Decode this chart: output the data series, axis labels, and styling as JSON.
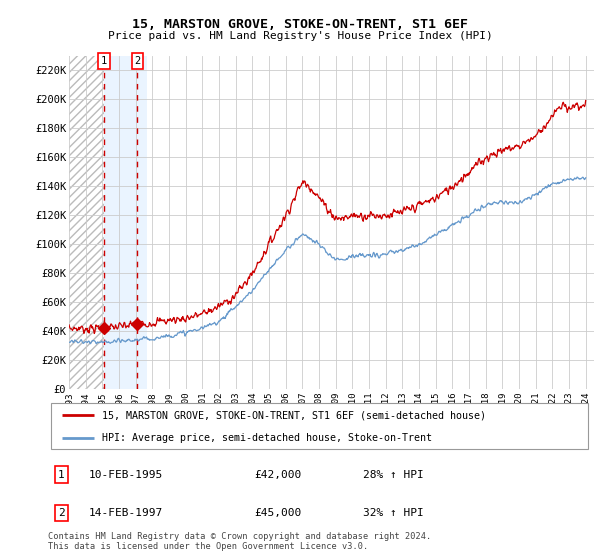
{
  "title": "15, MARSTON GROVE, STOKE-ON-TRENT, ST1 6EF",
  "subtitle": "Price paid vs. HM Land Registry's House Price Index (HPI)",
  "legend_line1": "15, MARSTON GROVE, STOKE-ON-TRENT, ST1 6EF (semi-detached house)",
  "legend_line2": "HPI: Average price, semi-detached house, Stoke-on-Trent",
  "annotation1_label": "1",
  "annotation1_date": "10-FEB-1995",
  "annotation1_price": "£42,000",
  "annotation1_hpi": "28% ↑ HPI",
  "annotation2_label": "2",
  "annotation2_date": "14-FEB-1997",
  "annotation2_price": "£45,000",
  "annotation2_hpi": "32% ↑ HPI",
  "footer": "Contains HM Land Registry data © Crown copyright and database right 2024.\nThis data is licensed under the Open Government Licence v3.0.",
  "sale1_x": 1995.1,
  "sale1_y": 42000,
  "sale2_x": 1997.1,
  "sale2_y": 45000,
  "ylim": [
    0,
    230000
  ],
  "xlim_start": 1993.0,
  "xlim_end": 2024.5,
  "yticks": [
    0,
    20000,
    40000,
    60000,
    80000,
    100000,
    120000,
    140000,
    160000,
    180000,
    200000,
    220000
  ],
  "ytick_labels": [
    "£0",
    "£20K",
    "£40K",
    "£60K",
    "£80K",
    "£100K",
    "£120K",
    "£140K",
    "£160K",
    "£180K",
    "£200K",
    "£220K"
  ],
  "xticks": [
    1993,
    1994,
    1995,
    1996,
    1997,
    1998,
    1999,
    2000,
    2001,
    2002,
    2003,
    2004,
    2005,
    2006,
    2007,
    2008,
    2009,
    2010,
    2011,
    2012,
    2013,
    2014,
    2015,
    2016,
    2017,
    2018,
    2019,
    2020,
    2021,
    2022,
    2023,
    2024
  ],
  "line_color": "#cc0000",
  "hpi_color": "#6699cc",
  "sale_dot_color": "#cc0000",
  "highlight_bg": "#ddeeff",
  "hatch_color": "#cccccc",
  "price_anchors_x": [
    1993.0,
    1995.1,
    1995.5,
    1996.0,
    1997.1,
    1998.0,
    1999.0,
    2000.0,
    2001.0,
    2002.0,
    2003.0,
    2004.0,
    2005.0,
    2006.0,
    2007.0,
    2007.5,
    2008.0,
    2008.5,
    2009.0,
    2009.5,
    2010.0,
    2011.0,
    2012.0,
    2013.0,
    2014.0,
    2015.0,
    2016.0,
    2017.0,
    2018.0,
    2019.0,
    2020.0,
    2021.0,
    2022.0,
    2022.5,
    2023.0,
    2024.0
  ],
  "price_anchors_y": [
    42000,
    42000,
    42500,
    43000,
    45000,
    46000,
    47500,
    49000,
    52000,
    57000,
    65000,
    80000,
    100000,
    120000,
    143000,
    140000,
    132000,
    125000,
    118000,
    118000,
    120000,
    120000,
    120000,
    122000,
    127000,
    132000,
    140000,
    150000,
    160000,
    165000,
    168000,
    175000,
    188000,
    195000,
    195000,
    196000
  ],
  "hpi_anchors_x": [
    1993.0,
    1994.0,
    1995.0,
    1996.0,
    1997.0,
    1998.0,
    1999.0,
    2000.0,
    2001.0,
    2002.0,
    2003.0,
    2004.0,
    2005.0,
    2006.0,
    2007.0,
    2007.5,
    2008.0,
    2008.5,
    2009.0,
    2009.5,
    2010.0,
    2011.0,
    2012.0,
    2013.0,
    2014.0,
    2015.0,
    2016.0,
    2017.0,
    2018.0,
    2019.0,
    2020.0,
    2021.0,
    2022.0,
    2023.0,
    2024.0
  ],
  "hpi_anchors_y": [
    33000,
    32500,
    32000,
    33000,
    34000,
    35000,
    37000,
    39000,
    42000,
    47000,
    57000,
    68000,
    82000,
    96000,
    107000,
    104000,
    100000,
    94000,
    90000,
    90000,
    92000,
    92000,
    93000,
    96000,
    100000,
    107000,
    113000,
    120000,
    127000,
    130000,
    128000,
    135000,
    142000,
    145000,
    146000
  ],
  "price_noise_scale": 2500,
  "hpi_noise_scale": 1200
}
